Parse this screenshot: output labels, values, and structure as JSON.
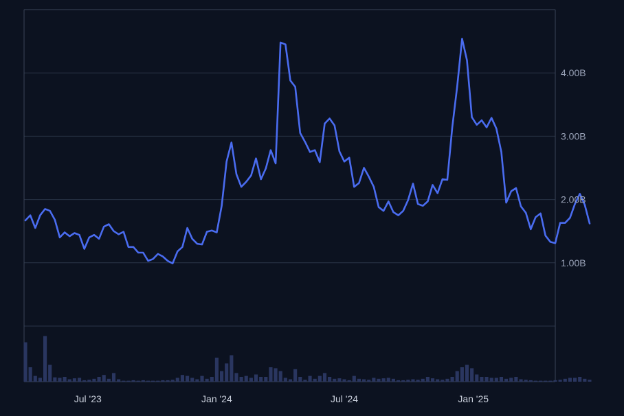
{
  "colors": {
    "background": "#0c1220",
    "gridline": "#2a3447",
    "frame": "#3a4458",
    "line": "#4a6cf0",
    "volume_bar": "#2a3660",
    "y_tick_text": "#9aa3b8",
    "x_tick_text": "#c9cfdb"
  },
  "chart_data": [
    {
      "type": "line",
      "title": "",
      "xlabel": "",
      "ylabel": "",
      "y_tick_labels": [
        "1.00B",
        "2.00B",
        "3.00B",
        "4.00B"
      ],
      "y_ticks": [
        1.0,
        2.0,
        3.0,
        4.0
      ],
      "ylim": [
        0.0,
        5.0
      ],
      "y_axis_side": "right",
      "x_tick_labels": [
        "Jul '23",
        "Jan '24",
        "Jul '24",
        "Jan '25"
      ],
      "x_ticks": [
        "2023-07-01",
        "2024-01-01",
        "2024-07-01",
        "2025-01-01"
      ],
      "xlim": [
        "2023-04-03",
        "2025-04-28"
      ],
      "grid": "horizontal",
      "series": [
        {
          "x_start": "2023-04-03",
          "x_step_days": 7,
          "values": [
            1.67,
            1.75,
            1.55,
            1.75,
            1.85,
            1.82,
            1.68,
            1.4,
            1.48,
            1.42,
            1.47,
            1.44,
            1.22,
            1.4,
            1.44,
            1.38,
            1.57,
            1.61,
            1.5,
            1.45,
            1.49,
            1.25,
            1.25,
            1.16,
            1.16,
            1.03,
            1.06,
            1.14,
            1.1,
            1.03,
            0.99,
            1.18,
            1.25,
            1.55,
            1.38,
            1.3,
            1.29,
            1.49,
            1.51,
            1.48,
            1.9,
            2.6,
            2.9,
            2.4,
            2.2,
            2.28,
            2.38,
            2.65,
            2.32,
            2.49,
            2.78,
            2.57,
            4.48,
            4.45,
            3.88,
            3.78,
            3.05,
            2.91,
            2.75,
            2.78,
            2.59,
            3.2,
            3.28,
            3.17,
            2.76,
            2.6,
            2.66,
            2.2,
            2.26,
            2.5,
            2.36,
            2.2,
            1.88,
            1.82,
            1.97,
            1.8,
            1.75,
            1.82,
            1.99,
            2.25,
            1.93,
            1.9,
            1.97,
            2.23,
            2.1,
            2.32,
            2.31,
            3.14,
            3.78,
            4.54,
            4.2,
            3.3,
            3.18,
            3.25,
            3.14,
            3.29,
            3.12,
            2.75,
            1.95,
            2.13,
            2.18,
            1.89,
            1.79,
            1.53,
            1.72,
            1.78,
            1.43,
            1.33,
            1.31,
            1.63,
            1.63,
            1.71,
            1.93,
            2.09,
            1.92,
            1.62
          ]
        }
      ]
    },
    {
      "type": "bar",
      "title": "",
      "series": [
        {
          "name": "",
          "x_start": "2023-04-03",
          "x_step_days": 7,
          "values": [
            0.82,
            0.3,
            0.12,
            0.08,
            0.95,
            0.35,
            0.09,
            0.08,
            0.1,
            0.05,
            0.07,
            0.08,
            0.03,
            0.04,
            0.06,
            0.1,
            0.14,
            0.06,
            0.18,
            0.05,
            0.02,
            0.02,
            0.03,
            0.02,
            0.03,
            0.02,
            0.02,
            0.02,
            0.03,
            0.03,
            0.04,
            0.08,
            0.14,
            0.12,
            0.08,
            0.05,
            0.12,
            0.06,
            0.1,
            0.5,
            0.22,
            0.38,
            0.55,
            0.18,
            0.1,
            0.12,
            0.08,
            0.15,
            0.1,
            0.1,
            0.3,
            0.28,
            0.22,
            0.08,
            0.05,
            0.26,
            0.1,
            0.04,
            0.12,
            0.06,
            0.12,
            0.18,
            0.1,
            0.06,
            0.07,
            0.05,
            0.03,
            0.12,
            0.06,
            0.05,
            0.04,
            0.08,
            0.06,
            0.07,
            0.08,
            0.06,
            0.03,
            0.03,
            0.04,
            0.05,
            0.04,
            0.06,
            0.1,
            0.07,
            0.05,
            0.04,
            0.06,
            0.1,
            0.22,
            0.3,
            0.35,
            0.28,
            0.15,
            0.1,
            0.1,
            0.08,
            0.08,
            0.1,
            0.06,
            0.08,
            0.1,
            0.05,
            0.04,
            0.03,
            0.02,
            0.02,
            0.02,
            0.02,
            0.03,
            0.04,
            0.06,
            0.08,
            0.08,
            0.1,
            0.06,
            0.04
          ]
        }
      ]
    }
  ]
}
